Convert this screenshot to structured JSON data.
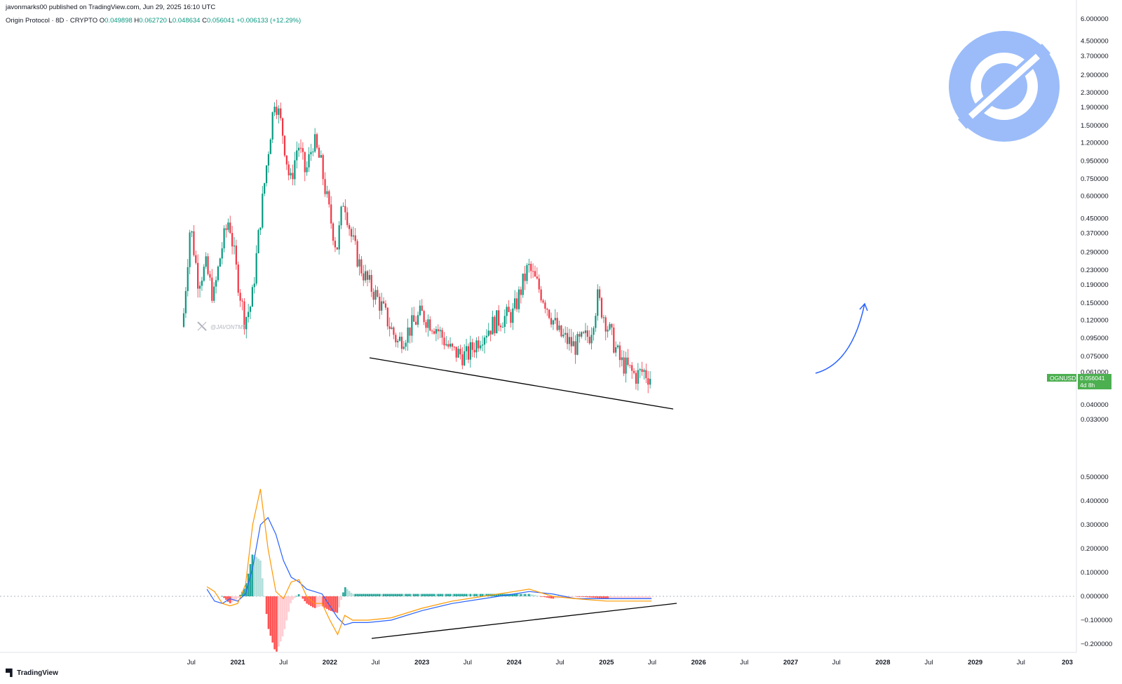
{
  "published_line": "javonmarks00 published on TradingView.com, Jun 29, 2025 16:10 UTC",
  "symbol_line": {
    "name": "Origin Protocol · 8D · CRYPTO",
    "o_label": "O",
    "o": "0.049898",
    "h_label": "H",
    "h": "0.062720",
    "l_label": "L",
    "l": "0.048634",
    "c_label": "C",
    "c": "0.056041",
    "change": "+0.006133 (+12.29%)"
  },
  "watermark_text": "@JAVONTM1",
  "ticker_badge": {
    "symbol": "OGNUSD",
    "price": "0.056041",
    "countdown": "4d 8h",
    "color": "#4caf50"
  },
  "footer_brand": "TradingView",
  "colors": {
    "up": "#089981",
    "down": "#f23645",
    "macd": "#2962ff",
    "signal": "#ff9800",
    "logo": "#9bbcf9"
  },
  "icons": [
    "origin-protocol-logo-icon",
    "x-logo-icon",
    "tradingview-logo-icon"
  ],
  "chart_data": [
    {
      "type": "candlestick",
      "title": "Origin Protocol · 8D · CRYPTO",
      "scale": "log",
      "price_ticks": [
        "6.000000",
        "4.500000",
        "3.700000",
        "2.900000",
        "2.300000",
        "1.900000",
        "1.500000",
        "1.200000",
        "0.950000",
        "0.750000",
        "0.600000",
        "0.450000",
        "0.370000",
        "0.290000",
        "0.230000",
        "0.190000",
        "0.150000",
        "0.120000",
        "0.095000",
        "0.075000",
        "0.061000",
        "0.040000",
        "0.033000"
      ],
      "time_ticks": [
        "Jul",
        "2021",
        "Jul",
        "2022",
        "Jul",
        "2023",
        "Jul",
        "2024",
        "Jul",
        "2025",
        "Jul",
        "2026",
        "Jul",
        "2027",
        "Jul",
        "2028",
        "Jul",
        "2029",
        "Jul",
        "203"
      ],
      "last_price": 0.056041,
      "price_path": [
        [
          "2020-06-01",
          0.11
        ],
        [
          "2020-07-01",
          0.42
        ],
        [
          "2020-08-01",
          0.2
        ],
        [
          "2020-09-01",
          0.24
        ],
        [
          "2020-10-01",
          0.16
        ],
        [
          "2020-11-01",
          0.3
        ],
        [
          "2020-12-01",
          0.45
        ],
        [
          "2021-01-01",
          0.22
        ],
        [
          "2021-02-01",
          0.12
        ],
        [
          "2021-03-01",
          0.15
        ],
        [
          "2021-04-01",
          0.4
        ],
        [
          "2021-05-01",
          0.95
        ],
        [
          "2021-06-01",
          2.2
        ],
        [
          "2021-07-01",
          1.4
        ],
        [
          "2021-08-01",
          0.7
        ],
        [
          "2021-09-01",
          1.2
        ],
        [
          "2021-10-01",
          0.8
        ],
        [
          "2021-11-01",
          1.25
        ],
        [
          "2021-12-01",
          0.9
        ],
        [
          "2022-01-01",
          0.5
        ],
        [
          "2022-02-01",
          0.3
        ],
        [
          "2022-03-01",
          0.6
        ],
        [
          "2022-04-01",
          0.35
        ],
        [
          "2022-05-01",
          0.25
        ],
        [
          "2022-06-01",
          0.2
        ],
        [
          "2022-07-01",
          0.17
        ],
        [
          "2022-08-01",
          0.14
        ],
        [
          "2022-09-01",
          0.11
        ],
        [
          "2022-10-01",
          0.09
        ],
        [
          "2022-11-01",
          0.1
        ],
        [
          "2023-01-01",
          0.13
        ],
        [
          "2023-03-01",
          0.11
        ],
        [
          "2023-05-01",
          0.08
        ],
        [
          "2023-07-01",
          0.075
        ],
        [
          "2023-09-01",
          0.1
        ],
        [
          "2023-11-01",
          0.12
        ],
        [
          "2024-01-01",
          0.13
        ],
        [
          "2024-03-01",
          0.24
        ],
        [
          "2024-05-01",
          0.16
        ],
        [
          "2024-07-01",
          0.1
        ],
        [
          "2024-09-01",
          0.085
        ],
        [
          "2024-11-01",
          0.1
        ],
        [
          "2024-12-01",
          0.16
        ],
        [
          "2025-01-01",
          0.12
        ],
        [
          "2025-03-01",
          0.07
        ],
        [
          "2025-05-01",
          0.058
        ],
        [
          "2025-06-01",
          0.062
        ],
        [
          "2025-06-29",
          0.056041
        ]
      ]
    },
    {
      "type": "line",
      "title": "MACD",
      "ylim": [
        -0.2,
        0.5
      ],
      "ticks": [
        "0.500000",
        "0.400000",
        "0.300000",
        "0.200000",
        "0.100000",
        "0.000000",
        "−0.100000",
        "−0.200000"
      ],
      "series": [
        {
          "key": "macd",
          "points": [
            [
              "2020-09-01",
              0.03
            ],
            [
              "2020-10-01",
              -0.02
            ],
            [
              "2020-11-01",
              -0.03
            ],
            [
              "2020-12-01",
              -0.01
            ],
            [
              "2021-01-01",
              -0.02
            ],
            [
              "2021-02-01",
              0.01
            ],
            [
              "2021-03-01",
              0.12
            ],
            [
              "2021-04-01",
              0.3
            ],
            [
              "2021-05-01",
              0.33
            ],
            [
              "2021-06-01",
              0.26
            ],
            [
              "2021-07-01",
              0.15
            ],
            [
              "2021-08-01",
              0.08
            ],
            [
              "2021-09-01",
              0.06
            ],
            [
              "2021-10-01",
              0.03
            ],
            [
              "2021-11-01",
              0.02
            ],
            [
              "2021-12-01",
              0.01
            ],
            [
              "2022-01-01",
              -0.04
            ],
            [
              "2022-02-01",
              -0.09
            ],
            [
              "2022-03-01",
              -0.12
            ],
            [
              "2022-04-01",
              -0.11
            ],
            [
              "2022-06-01",
              -0.11
            ],
            [
              "2022-09-01",
              -0.1
            ],
            [
              "2023-01-01",
              -0.06
            ],
            [
              "2023-05-01",
              -0.03
            ],
            [
              "2023-09-01",
              -0.01
            ],
            [
              "2024-01-01",
              0.01
            ],
            [
              "2024-03-01",
              0.02
            ],
            [
              "2024-06-01",
              0.01
            ],
            [
              "2024-09-01",
              -0.01
            ],
            [
              "2025-01-01",
              -0.01
            ],
            [
              "2025-06-29",
              -0.01
            ]
          ]
        },
        {
          "key": "signal",
          "points": [
            [
              "2020-09-01",
              0.04
            ],
            [
              "2020-10-01",
              0.02
            ],
            [
              "2020-11-01",
              -0.03
            ],
            [
              "2020-12-01",
              -0.04
            ],
            [
              "2021-01-01",
              -0.03
            ],
            [
              "2021-02-01",
              0.05
            ],
            [
              "2021-03-01",
              0.3
            ],
            [
              "2021-04-01",
              0.45
            ],
            [
              "2021-05-01",
              0.2
            ],
            [
              "2021-06-01",
              0.02
            ],
            [
              "2021-07-01",
              -0.01
            ],
            [
              "2021-08-01",
              0.06
            ],
            [
              "2021-09-01",
              0.07
            ],
            [
              "2021-10-01",
              0.0
            ],
            [
              "2021-11-01",
              -0.03
            ],
            [
              "2021-12-01",
              -0.03
            ],
            [
              "2022-01-01",
              -0.1
            ],
            [
              "2022-02-01",
              -0.16
            ],
            [
              "2022-03-01",
              -0.08
            ],
            [
              "2022-04-01",
              -0.1
            ],
            [
              "2022-06-01",
              -0.1
            ],
            [
              "2022-09-01",
              -0.09
            ],
            [
              "2023-01-01",
              -0.05
            ],
            [
              "2023-05-01",
              -0.02
            ],
            [
              "2023-09-01",
              0.0
            ],
            [
              "2024-01-01",
              0.02
            ],
            [
              "2024-03-01",
              0.03
            ],
            [
              "2024-06-01",
              0.0
            ],
            [
              "2024-09-01",
              -0.01
            ],
            [
              "2025-01-01",
              -0.02
            ],
            [
              "2025-06-29",
              -0.02
            ]
          ]
        }
      ]
    }
  ]
}
